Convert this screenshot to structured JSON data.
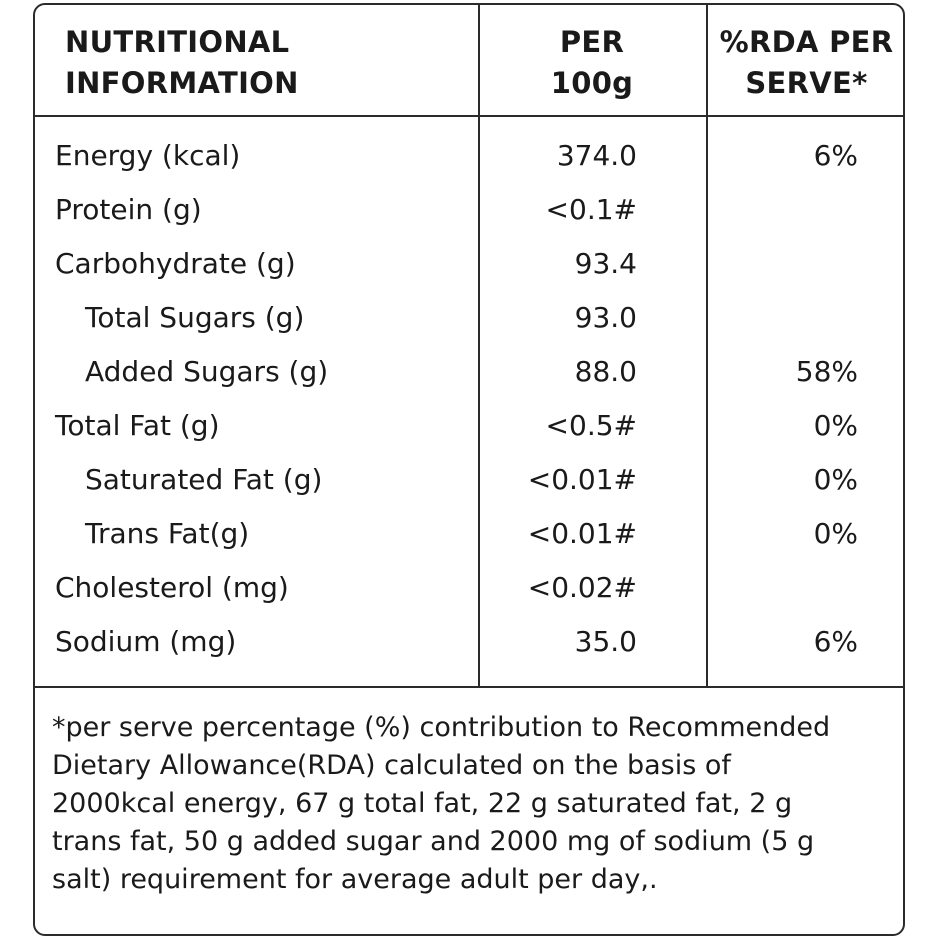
{
  "header": {
    "col1": [
      "NUTRITIONAL",
      "INFORMATION"
    ],
    "col2": [
      "PER",
      "100g"
    ],
    "col3": [
      "%RDA PER",
      "SERVE*"
    ]
  },
  "rows": [
    {
      "name": "Energy (kcal)",
      "per100g": "374.0",
      "rda": "6%"
    },
    {
      "name": "Protein (g)",
      "per100g": "<0.1#",
      "rda": ""
    },
    {
      "name": "Carbohydrate (g)",
      "per100g": "93.4",
      "rda": ""
    },
    {
      "name": "Total Sugars (g)",
      "per100g": "93.0",
      "rda": ""
    },
    {
      "name": "Added Sugars (g)",
      "per100g": "88.0",
      "rda": "58%"
    },
    {
      "name": "Total Fat (g)",
      "per100g": "<0.5#",
      "rda": "0%"
    },
    {
      "name": "Saturated Fat (g)",
      "per100g": "<0.01#",
      "rda": "0%"
    },
    {
      "name": "Trans Fat(g)",
      "per100g": "<0.01#",
      "rda": "0%"
    },
    {
      "name": "Cholesterol (mg)",
      "per100g": "<0.02#",
      "rda": ""
    },
    {
      "name": "Sodium (mg)",
      "per100g": "35.0",
      "rda": "6%"
    }
  ],
  "footnote": [
    "*per serve percentage (%) contribution to Recommended",
    "Dietary Allowance(RDA)  calculated on the basis of",
    "2000kcal energy, 67 g total fat, 22 g saturated fat, 2 g",
    "trans fat, 50 g added sugar and 2000 mg of sodium (5 g",
    "salt) requirement for average adult per day,."
  ]
}
